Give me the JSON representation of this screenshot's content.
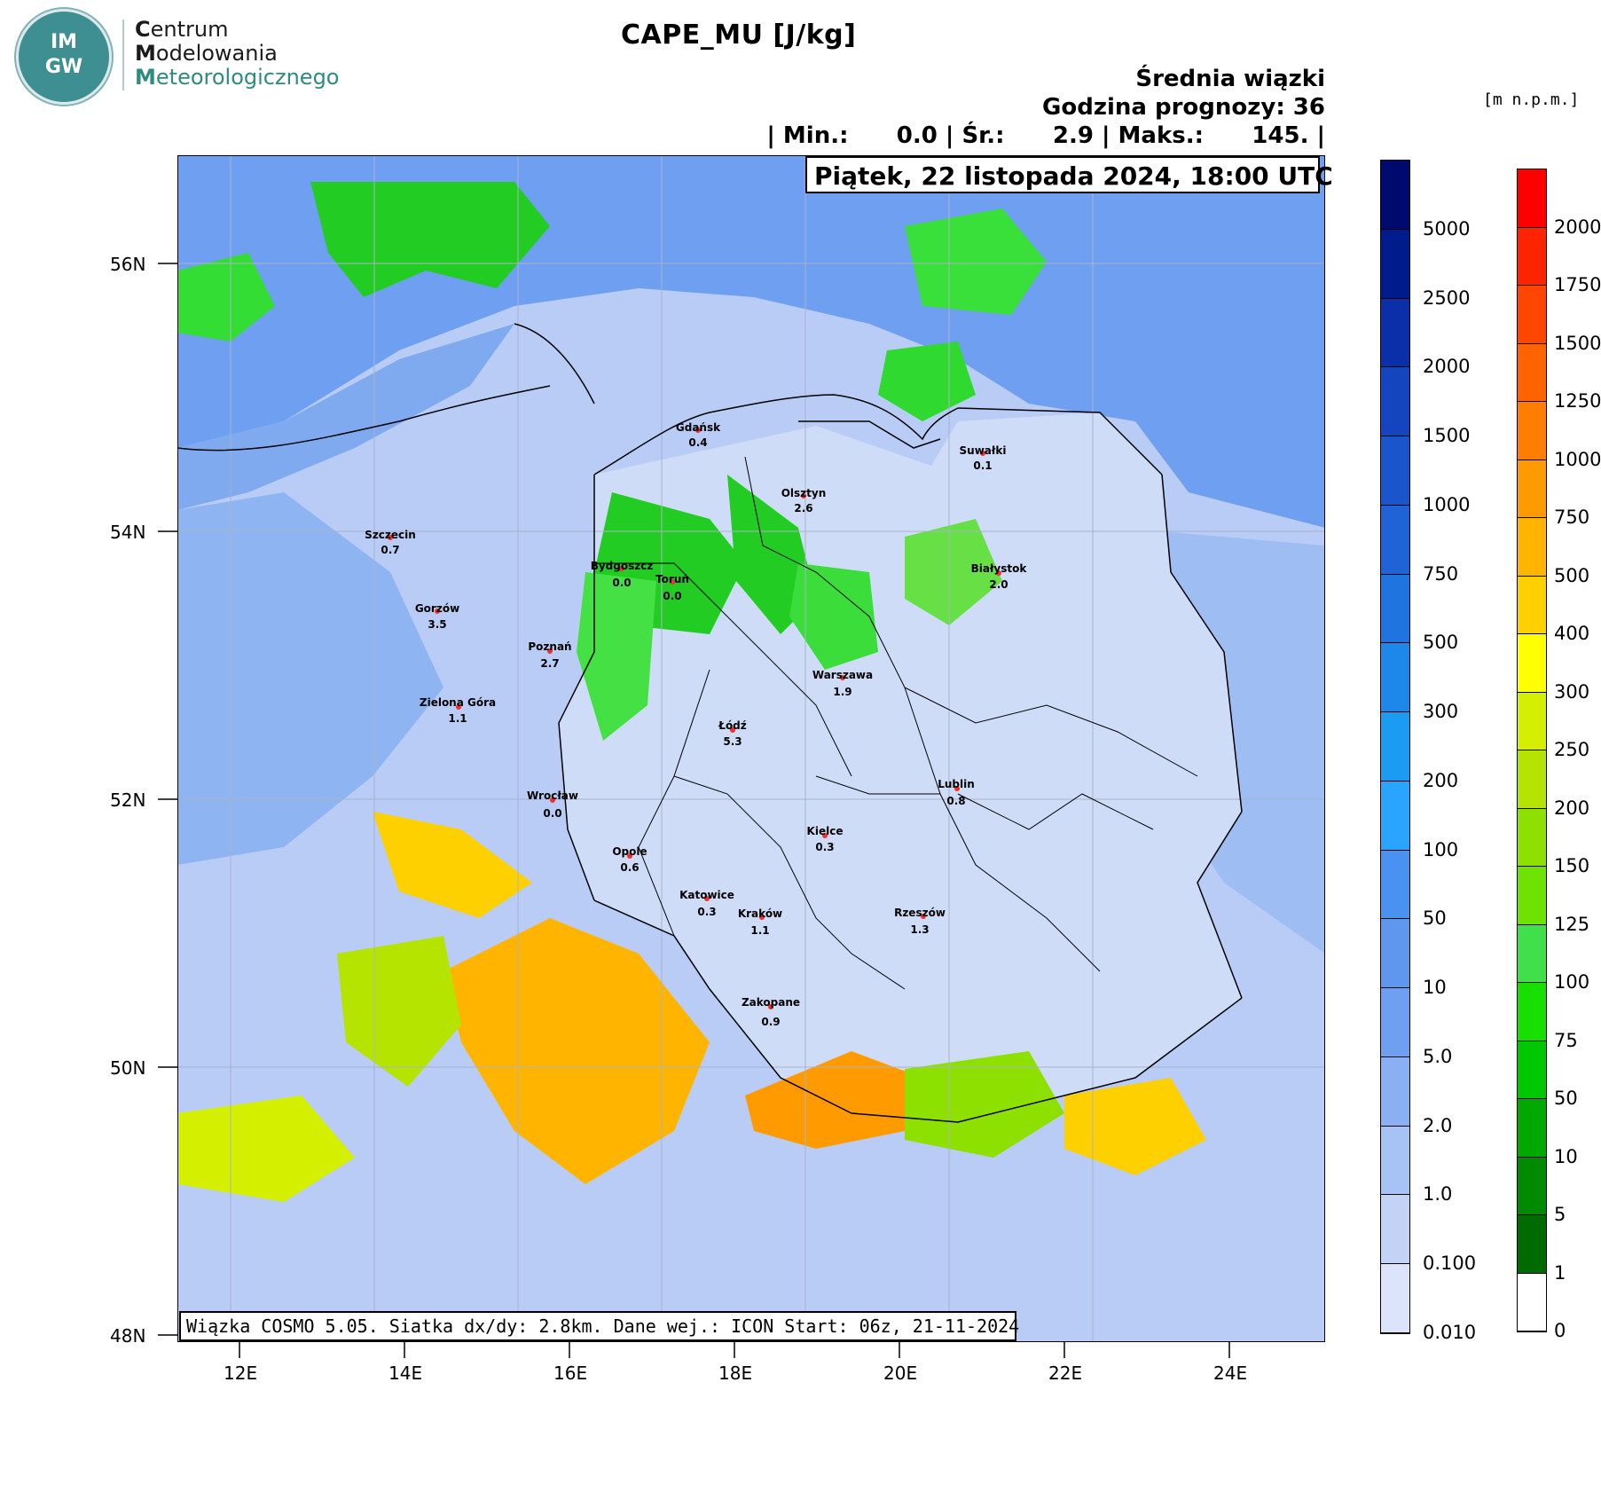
{
  "logo": {
    "badge_top": "IM",
    "badge_bottom": "GW",
    "line1": "Centrum",
    "line2": "Modelowania",
    "line3": "Meteorologicznego"
  },
  "header": {
    "title": "CAPE_MU [J/kg]",
    "subtitle": "Średnia wiązki",
    "forecast_hour": "Godzina prognozy: 36",
    "stats": "| Min.:      0.0 | Śr.:      2.9 | Maks.:      145. |",
    "date": "Piątek, 22 listopada 2024, 18:00 UTC"
  },
  "footer": "Wiązka COSMO 5.05. Siatka dx/dy: 2.8km. Dane wej.: ICON Start: 06z, 21-11-2024",
  "units_right": "[m n.p.m.]",
  "axes": {
    "lat_ticks": [
      "56N",
      "54N",
      "52N",
      "50N",
      "48N"
    ],
    "lon_ticks": [
      "12E",
      "14E",
      "16E",
      "18E",
      "20E",
      "22E",
      "24E"
    ]
  },
  "colorbar_cape": {
    "labels": [
      "5000",
      "2500",
      "2000",
      "1500",
      "1000",
      "750",
      "500",
      "300",
      "200",
      "100",
      "50",
      "10",
      "5.0",
      "2.0",
      "1.0",
      "0.100",
      "0.010"
    ],
    "colors": [
      "#000a6e",
      "#001c8c",
      "#0a2fa8",
      "#1444be",
      "#1a55cc",
      "#1f63d6",
      "#1f74df",
      "#1e88ea",
      "#1b9cf2",
      "#2aa5ff",
      "#4a92ef",
      "#5f97ee",
      "#6f9ff0",
      "#8aaff2",
      "#a7c2f4",
      "#c2d3f6",
      "#dbe4fa"
    ]
  },
  "colorbar_height": {
    "labels": [
      "2000",
      "1750",
      "1500",
      "1250",
      "1000",
      "750",
      "500",
      "400",
      "300",
      "250",
      "200",
      "150",
      "125",
      "100",
      "75",
      "50",
      "10",
      "5",
      "1",
      "0"
    ],
    "colors": [
      "#ff0000",
      "#ff2400",
      "#ff4600",
      "#ff6400",
      "#ff7d00",
      "#ff9a00",
      "#ffb400",
      "#ffd000",
      "#ffff00",
      "#d4f000",
      "#b4e400",
      "#8ee000",
      "#6ee200",
      "#3fe04a",
      "#17e000",
      "#00c800",
      "#00a800",
      "#008a00",
      "#006b00",
      "#ffffff"
    ]
  },
  "cities": [
    {
      "name": "Gdańsk",
      "value": "0.4"
    },
    {
      "name": "Suwałki",
      "value": "0.1"
    },
    {
      "name": "Olsztyn",
      "value": "2.6"
    },
    {
      "name": "Szczecin",
      "value": "0.7"
    },
    {
      "name": "Bydgoszcz",
      "value": "0.0"
    },
    {
      "name": "Toruń",
      "value": "0.0"
    },
    {
      "name": "Białystok",
      "value": "2.0"
    },
    {
      "name": "Gorzów",
      "value": "3.5"
    },
    {
      "name": "Poznań",
      "value": "2.7"
    },
    {
      "name": "Warszawa",
      "value": "1.9"
    },
    {
      "name": "Zielona Góra",
      "value": "1.1"
    },
    {
      "name": "Łódź",
      "value": "5.3"
    },
    {
      "name": "Lublin",
      "value": "0.8"
    },
    {
      "name": "Wrocław",
      "value": "0.0"
    },
    {
      "name": "Kielce",
      "value": "0.3"
    },
    {
      "name": "Opole",
      "value": "0.6"
    },
    {
      "name": "Katowice",
      "value": "0.3"
    },
    {
      "name": "Kraków",
      "value": "1.1"
    },
    {
      "name": "Rzeszów",
      "value": "1.3"
    },
    {
      "name": "Zakopane",
      "value": "0.9"
    }
  ]
}
